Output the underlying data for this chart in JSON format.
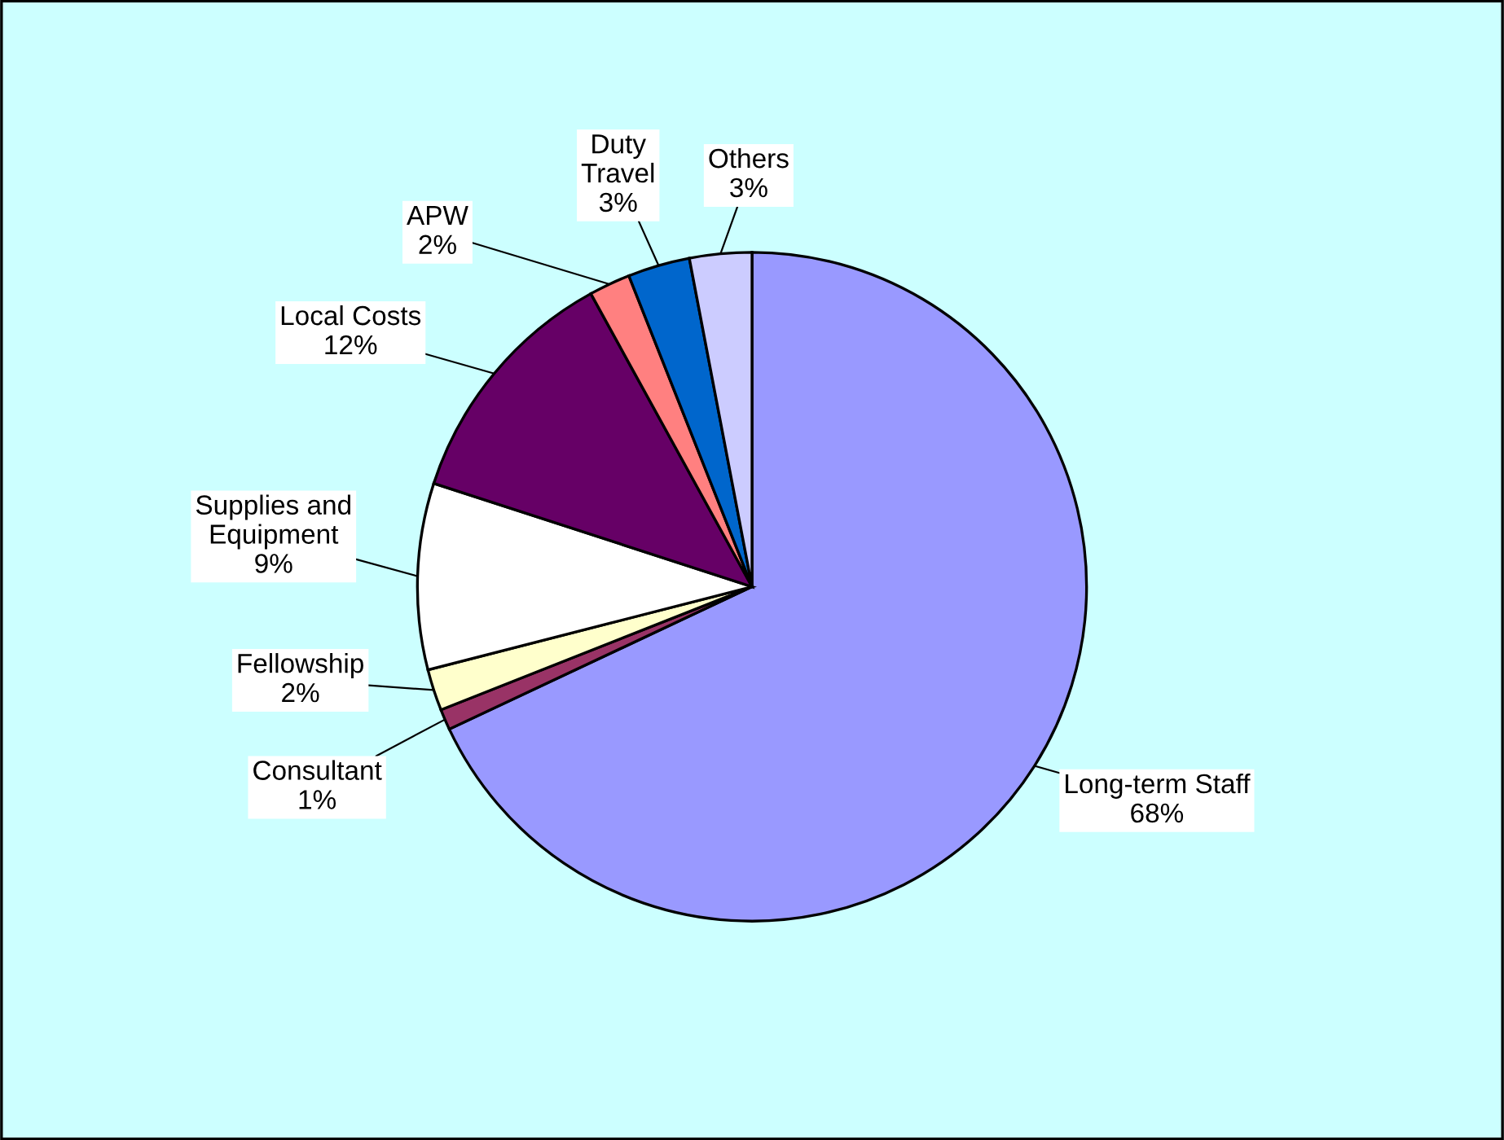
{
  "chart_data": {
    "type": "pie",
    "categories": [
      "Long-term Staff",
      "Consultant",
      "Fellowship",
      "Supplies and\nEquipment",
      "Local Costs",
      "APW",
      "Duty\nTravel",
      "Others"
    ],
    "values": [
      68,
      1,
      2,
      9,
      12,
      2,
      3,
      3
    ],
    "colors": [
      "#9999ff",
      "#993366",
      "#ffffcc",
      "#ffffff",
      "#660066",
      "#ff8080",
      "#0066cc",
      "#ccccff"
    ],
    "value_labels": [
      "68%",
      "1%",
      "2%",
      "9%",
      "12%",
      "2%",
      "3%",
      "3%"
    ]
  }
}
